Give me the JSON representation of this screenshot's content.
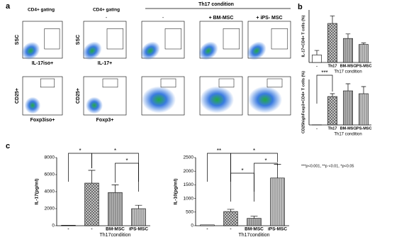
{
  "figure": {
    "labels": [
      "a",
      "b",
      "c"
    ],
    "flow_headers": [
      "CD4+ gating",
      "CD4+ gating",
      "Th17 condition",
      "-",
      "-",
      "+ BM-MSC",
      "+ iPS- MSC"
    ],
    "flow_x_labels": [
      "IL-17iso+",
      "IL-17+",
      "Foxp3iso+",
      "Foxp3+"
    ],
    "flow_y_labels": [
      "SSC",
      "SSC",
      "CD25+",
      "CD25+"
    ],
    "footnote": "***p<0.001, **p <0.01, *p<0.05"
  },
  "chart_data": [
    {
      "type": "bar",
      "ylabel": "IL-17+CD4+ T cells (%)",
      "xlabel": "Th17 condition",
      "categories": [
        "-",
        "Th17",
        "BM-MSC",
        "iPS-MSC"
      ],
      "values": [
        0.5,
        2.6,
        1.6,
        1.2
      ],
      "errors": [
        0.3,
        0.5,
        0.3,
        0.1
      ],
      "colors": [
        "#ffffff",
        "#cfcfcf",
        "#b5b5b5",
        "#c9c9c9"
      ],
      "ylim": [
        0,
        3.5
      ],
      "annotations": []
    },
    {
      "type": "bar",
      "ylabel": "CD25highFoxp3+CD4+ T cells (%)",
      "xlabel": "Th17 condition",
      "categories": [
        "-",
        "Th17",
        "BM-MSC",
        "iPS-MSC"
      ],
      "values": [
        0.1,
        20,
        24,
        22
      ],
      "errors": [
        0,
        2,
        5,
        5
      ],
      "colors": [
        "#ffffff",
        "#cfcfcf",
        "#b5b5b5",
        "#c9c9c9"
      ],
      "ylim": [
        0,
        32
      ],
      "annotations": [
        "***"
      ]
    },
    {
      "type": "bar",
      "ylabel": "IL-17(pg/ml)",
      "xlabel": "Th17condition",
      "categories": [
        "-",
        "-",
        "BM-MSC",
        "iPS-MSC"
      ],
      "values": [
        50,
        5000,
        3900,
        2000
      ],
      "errors": [
        0,
        1500,
        900,
        400
      ],
      "colors": [
        "#ffffff",
        "#cfcfcf",
        "#b5b5b5",
        "#c9c9c9"
      ],
      "ylim": [
        0,
        8000
      ],
      "yticks": [
        0,
        2000,
        4000,
        6000,
        8000
      ],
      "annotations": [
        "*",
        "*",
        "*"
      ]
    },
    {
      "type": "bar",
      "ylabel": "IL-10(pg/ml)",
      "xlabel": "Th17condition",
      "categories": [
        "-",
        "-",
        "BM-MSC",
        "iPS-MSC"
      ],
      "values": [
        30,
        520,
        270,
        1750
      ],
      "errors": [
        0,
        80,
        80,
        500
      ],
      "colors": [
        "#ffffff",
        "#cfcfcf",
        "#b5b5b5",
        "#c9c9c9"
      ],
      "ylim": [
        0,
        2500
      ],
      "yticks": [
        0,
        500,
        1000,
        1500,
        2000,
        2500
      ],
      "annotations": [
        "**",
        "*",
        "*",
        "*"
      ]
    }
  ]
}
